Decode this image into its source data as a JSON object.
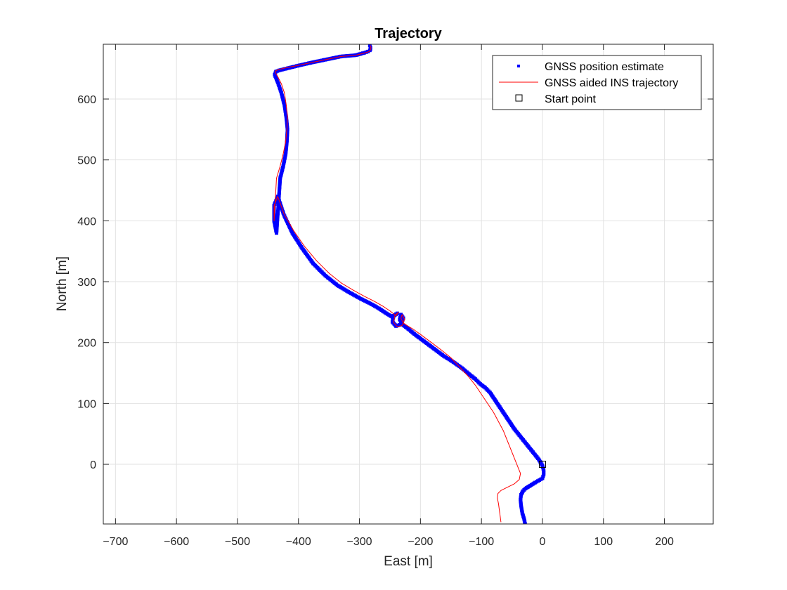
{
  "chart_data": {
    "type": "line",
    "title": "Trajectory",
    "xlabel": "East [m]",
    "ylabel": "North [m]",
    "xlim": [
      -720,
      280
    ],
    "ylim": [
      -98,
      690
    ],
    "xticks": [
      -700,
      -600,
      -500,
      -400,
      -300,
      -200,
      -100,
      0,
      100,
      200
    ],
    "yticks": [
      0,
      100,
      200,
      300,
      400,
      500,
      600
    ],
    "grid": true,
    "legend_position": "top-right",
    "series": [
      {
        "name": "GNSS position estimate",
        "style": "markers",
        "color": "#0000ff",
        "x": [
          -28,
          -30,
          -33,
          -35,
          -36,
          -35,
          -32,
          -28,
          -20,
          -12,
          -5,
          0,
          2,
          2,
          0,
          -6,
          -14,
          -22,
          -30,
          -38,
          -46,
          -54,
          -62,
          -70,
          -78,
          -86,
          -94,
          -102,
          -110,
          -120,
          -132,
          -146,
          -162,
          -178,
          -194,
          -210,
          -222,
          -230,
          -234,
          -232,
          -228,
          -232,
          -240,
          -246,
          -244,
          -238,
          -246,
          -256,
          -268,
          -282,
          -298,
          -316,
          -336,
          -356,
          -376,
          -394,
          -410,
          -424,
          -434,
          -440,
          -440,
          -436,
          -430,
          -425,
          -421,
          -419,
          -418,
          -420,
          -423,
          -428,
          -433,
          -437,
          -439,
          -437,
          -432,
          -420,
          -400,
          -378,
          -354,
          -330,
          -306,
          -292,
          -286,
          -283,
          -282,
          -282,
          -283
        ],
        "y": [
          -100,
          -90,
          -80,
          -68,
          -58,
          -50,
          -44,
          -40,
          -35,
          -30,
          -26,
          -23,
          -17,
          -10,
          -2,
          8,
          18,
          28,
          38,
          48,
          58,
          70,
          82,
          94,
          106,
          118,
          126,
          132,
          140,
          148,
          158,
          168,
          178,
          190,
          202,
          214,
          224,
          230,
          238,
          246,
          240,
          230,
          227,
          234,
          244,
          248,
          242,
          248,
          256,
          264,
          272,
          282,
          294,
          310,
          330,
          355,
          380,
          410,
          440,
          425,
          400,
          380,
          470,
          490,
          510,
          530,
          550,
          570,
          590,
          610,
          625,
          635,
          640,
          645,
          647,
          650,
          655,
          660,
          665,
          670,
          672,
          676,
          678,
          680,
          682,
          685,
          688
        ]
      },
      {
        "name": "GNSS aided INS trajectory",
        "style": "line",
        "color": "#ff0000",
        "x": [
          -68,
          -70,
          -72,
          -74,
          -73,
          -68,
          -58,
          -46,
          -38,
          -36,
          -40,
          -46,
          -52,
          -58,
          -64,
          -72,
          -80,
          -90,
          -100,
          -110,
          -122,
          -136,
          -150,
          -166,
          -182,
          -198,
          -212,
          -222,
          -228,
          -232,
          -230,
          -226,
          -230,
          -238,
          -244,
          -242,
          -236,
          -240,
          -250,
          -262,
          -276,
          -292,
          -310,
          -330,
          -350,
          -370,
          -390,
          -408,
          -424,
          -434,
          -440,
          -440,
          -436,
          -430,
          -425,
          -421,
          -419,
          -418,
          -420,
          -423,
          -428,
          -433,
          -437,
          -438,
          -434,
          -422,
          -402,
          -378,
          -354,
          -330,
          -306,
          -290,
          -284,
          -282,
          -281,
          -282
        ],
        "y": [
          -95,
          -80,
          -65,
          -55,
          -48,
          -43,
          -38,
          -32,
          -25,
          -15,
          -5,
          10,
          25,
          40,
          55,
          70,
          85,
          100,
          115,
          130,
          145,
          160,
          175,
          188,
          200,
          212,
          222,
          228,
          232,
          240,
          246,
          238,
          228,
          226,
          233,
          244,
          250,
          244,
          252,
          260,
          268,
          276,
          286,
          298,
          314,
          334,
          358,
          384,
          412,
          440,
          425,
          400,
          470,
          490,
          510,
          530,
          550,
          570,
          590,
          610,
          625,
          635,
          642,
          646,
          648,
          651,
          655,
          660,
          665,
          670,
          672,
          676,
          678,
          681,
          684,
          688
        ]
      },
      {
        "name": "Start point",
        "style": "square",
        "color": "#000000",
        "x": [
          0
        ],
        "y": [
          0
        ]
      }
    ]
  }
}
